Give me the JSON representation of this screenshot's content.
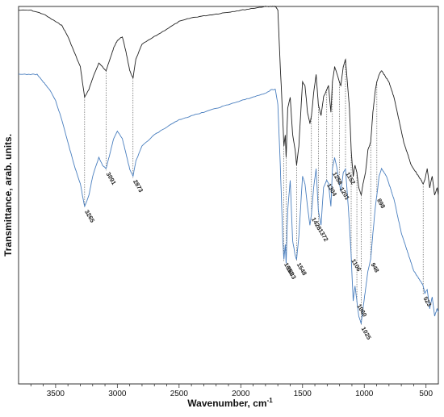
{
  "chart_data": {
    "type": "line",
    "xlabel": "Wavenumber, cm",
    "xlabel_superscript": "-1",
    "ylabel": "Transmittance, arab. units.",
    "xlim": [
      3800,
      400
    ],
    "x_reversed": true,
    "ylim": [
      0,
      100
    ],
    "x_ticks": [
      3500,
      3000,
      2500,
      2000,
      1500,
      1000,
      500
    ],
    "grid": false,
    "legend": "none",
    "series": [
      {
        "color": "#222222",
        "x": [
          3800,
          3700,
          3600,
          3500,
          3450,
          3400,
          3350,
          3300,
          3265,
          3230,
          3200,
          3150,
          3120,
          3091,
          3060,
          3030,
          3000,
          2960,
          2930,
          2900,
          2873,
          2850,
          2800,
          2700,
          2600,
          2500,
          2400,
          2300,
          2200,
          2100,
          2000,
          1900,
          1800,
          1750,
          1720,
          1700,
          1680,
          1660,
          1651,
          1640,
          1633,
          1620,
          1600,
          1580,
          1560,
          1548,
          1530,
          1500,
          1480,
          1460,
          1440,
          1428,
          1410,
          1390,
          1372,
          1350,
          1330,
          1304,
          1290,
          1270,
          1258,
          1240,
          1220,
          1201,
          1190,
          1170,
          1152,
          1130,
          1120,
          1106,
          1090,
          1075,
          1060,
          1045,
          1025,
          1010,
          990,
          970,
          948,
          930,
          910,
          898,
          880,
          860,
          840,
          820,
          800,
          780,
          760,
          740,
          720,
          700,
          680,
          660,
          640,
          620,
          600,
          580,
          560,
          540,
          523,
          510,
          490,
          470,
          450,
          430,
          410,
          400
        ],
        "y": [
          99,
          99,
          98,
          96,
          95,
          92,
          88,
          84,
          76,
          78,
          81,
          85,
          84,
          83,
          86,
          89,
          91,
          92,
          88,
          83,
          81,
          86,
          90,
          92,
          94,
          96,
          97,
          97.5,
          98,
          98.5,
          99,
          99.5,
          100,
          100,
          100,
          99,
          84,
          70,
          63,
          66,
          60,
          73,
          76,
          66,
          62,
          58,
          63,
          80,
          79,
          72,
          69,
          71,
          77,
          82,
          74,
          71,
          76,
          78,
          79,
          72,
          80,
          84,
          82,
          80,
          79,
          84,
          86,
          77,
          73,
          62,
          55,
          58,
          56,
          52,
          50,
          53,
          56,
          62,
          64,
          72,
          78,
          80,
          82,
          83,
          82,
          81,
          80,
          78,
          76,
          73,
          70,
          67,
          64,
          62,
          60,
          58,
          57,
          56,
          55,
          54,
          53,
          54,
          57,
          52,
          55,
          50,
          52,
          50
        ]
      },
      {
        "color": "#4a7fbf",
        "x": [
          3800,
          3700,
          3650,
          3600,
          3550,
          3500,
          3450,
          3400,
          3350,
          3300,
          3265,
          3230,
          3200,
          3150,
          3120,
          3091,
          3060,
          3030,
          3000,
          2960,
          2930,
          2900,
          2873,
          2850,
          2800,
          2700,
          2600,
          2500,
          2400,
          2300,
          2200,
          2100,
          2000,
          1900,
          1800,
          1750,
          1720,
          1700,
          1680,
          1660,
          1651,
          1640,
          1633,
          1620,
          1600,
          1580,
          1560,
          1548,
          1530,
          1500,
          1480,
          1460,
          1440,
          1428,
          1410,
          1390,
          1372,
          1350,
          1330,
          1304,
          1290,
          1270,
          1258,
          1240,
          1220,
          1201,
          1190,
          1170,
          1152,
          1130,
          1120,
          1106,
          1090,
          1075,
          1060,
          1045,
          1025,
          1010,
          990,
          970,
          948,
          930,
          910,
          898,
          880,
          860,
          840,
          820,
          800,
          780,
          760,
          740,
          720,
          700,
          680,
          660,
          640,
          620,
          600,
          580,
          560,
          540,
          523,
          510,
          490,
          470,
          450,
          430,
          410,
          400
        ],
        "y": [
          82,
          82,
          82,
          80,
          78,
          75,
          70,
          64,
          58,
          53,
          47,
          50,
          55,
          60,
          58,
          57,
          61,
          65,
          67,
          65,
          61,
          57,
          55,
          59,
          63,
          66,
          68,
          70,
          71,
          72,
          73,
          74,
          75,
          76,
          77,
          78,
          78,
          74,
          58,
          38,
          33,
          37,
          32,
          46,
          54,
          38,
          34,
          33,
          39,
          55,
          53,
          47,
          42,
          45,
          52,
          57,
          46,
          42,
          52,
          54,
          53,
          47,
          57,
          60,
          57,
          53,
          51,
          56,
          57,
          47,
          42,
          34,
          22,
          26,
          22,
          18,
          16,
          20,
          25,
          30,
          33,
          40,
          47,
          50,
          55,
          57,
          56,
          55,
          53,
          51,
          49,
          46,
          43,
          40,
          38,
          36,
          34,
          32,
          30,
          29,
          28,
          27,
          26,
          24,
          25,
          20,
          23,
          18,
          20,
          19
        ]
      }
    ],
    "annotations": [
      {
        "label": "3265",
        "x": 3265,
        "y": 47
      },
      {
        "label": "3091",
        "x": 3091,
        "y": 57
      },
      {
        "label": "2873",
        "x": 2873,
        "y": 55
      },
      {
        "label": "1651",
        "x": 1651,
        "y": 33
      },
      {
        "label": "1633",
        "x": 1633,
        "y": 32
      },
      {
        "label": "1548",
        "x": 1548,
        "y": 33
      },
      {
        "label": "1428",
        "x": 1428,
        "y": 45
      },
      {
        "label": "1372",
        "x": 1372,
        "y": 42
      },
      {
        "label": "1304",
        "x": 1304,
        "y": 54
      },
      {
        "label": "1258",
        "x": 1258,
        "y": 57
      },
      {
        "label": "1201",
        "x": 1201,
        "y": 53
      },
      {
        "label": "1152",
        "x": 1152,
        "y": 57
      },
      {
        "label": "1106",
        "x": 1106,
        "y": 34
      },
      {
        "label": "1060",
        "x": 1060,
        "y": 22
      },
      {
        "label": "1025",
        "x": 1025,
        "y": 16
      },
      {
        "label": "948",
        "x": 948,
        "y": 33
      },
      {
        "label": "898",
        "x": 898,
        "y": 50
      },
      {
        "label": "523",
        "x": 523,
        "y": 24
      }
    ]
  }
}
